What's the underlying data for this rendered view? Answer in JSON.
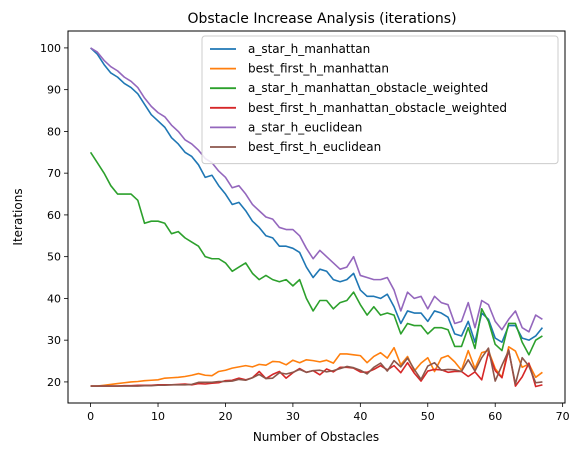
{
  "chart_data": {
    "type": "line",
    "title": "Obstacle Increase Analysis (iterations)",
    "xlabel": "Number of Obstacles",
    "ylabel": "Iterations",
    "xlim": [
      -3.35,
      70.35
    ],
    "ylim": [
      14.95,
      104.05
    ],
    "xticks": [
      0,
      10,
      20,
      30,
      40,
      50,
      60,
      70
    ],
    "yticks": [
      20,
      30,
      40,
      50,
      60,
      70,
      80,
      90,
      100
    ],
    "grid": false,
    "legend_position": "top-right",
    "x": [
      0,
      1,
      2,
      3,
      4,
      5,
      6,
      7,
      8,
      9,
      10,
      11,
      12,
      13,
      14,
      15,
      16,
      17,
      18,
      19,
      20,
      21,
      22,
      23,
      24,
      25,
      26,
      27,
      28,
      29,
      30,
      31,
      32,
      33,
      34,
      35,
      36,
      37,
      38,
      39,
      40,
      41,
      42,
      43,
      44,
      45,
      46,
      47,
      48,
      49,
      50,
      51,
      52,
      53,
      54,
      55,
      56,
      57,
      58,
      59,
      60,
      61,
      62,
      63,
      64,
      65,
      66,
      67
    ],
    "series": [
      {
        "name": "a_star_h_manhattan",
        "color": "#1f77b4",
        "values": [
          100,
          98.5,
          96,
          94,
          93,
          91.5,
          90.5,
          89,
          86.5,
          84,
          82.5,
          81,
          78.5,
          77,
          75,
          74,
          72,
          69,
          69.5,
          67,
          65,
          62.5,
          63,
          61,
          58.5,
          57,
          55,
          54.5,
          52.5,
          52.5,
          52,
          51,
          47.5,
          45,
          47,
          46.5,
          44.5,
          44,
          44.5,
          46,
          42,
          40.5,
          40.5,
          40,
          41,
          38,
          34,
          37,
          36.5,
          36.5,
          34.5,
          37,
          36.5,
          35.5,
          31.5,
          31,
          34.5,
          29.5,
          36.5,
          35,
          30.5,
          29.5,
          33.5,
          33.5,
          30.5,
          30,
          31,
          33
        ]
      },
      {
        "name": "best_first_h_manhattan",
        "color": "#ff7f0e",
        "values": [
          19,
          19,
          19.2,
          19.4,
          19.6,
          19.8,
          20,
          20.1,
          20.3,
          20.4,
          20.5,
          20.9,
          21,
          21.1,
          21.3,
          21.6,
          22,
          21.6,
          21.5,
          22.5,
          22.8,
          23.3,
          23.6,
          23.9,
          23.6,
          24.2,
          24,
          24.9,
          24.8,
          24.1,
          25.2,
          24.6,
          25.3,
          25.1,
          24.8,
          25.2,
          24.5,
          26.7,
          26.7,
          26.5,
          26.3,
          24.6,
          26.1,
          27,
          25.7,
          28.2,
          24.1,
          26.1,
          22.6,
          24.5,
          25.8,
          22.5,
          25.7,
          26.3,
          24.8,
          22.8,
          27.5,
          23.2,
          27,
          27.5,
          23.2,
          21.1,
          28.4,
          27.4,
          23.5,
          24.3,
          21.1,
          22.3
        ]
      },
      {
        "name": "a_star_h_manhattan_obstacle_weighted",
        "color": "#2ca02c",
        "values": [
          75,
          72.5,
          70,
          67,
          65,
          65,
          65,
          63.5,
          58,
          58.5,
          58.5,
          58,
          55.5,
          56,
          54.5,
          53.5,
          52.5,
          50,
          49.5,
          49.5,
          48.5,
          46.5,
          47.5,
          48.5,
          46,
          44.5,
          45.5,
          44.5,
          44,
          44.5,
          43,
          44.5,
          40,
          37,
          39.5,
          39.5,
          37.5,
          39,
          39.5,
          41.5,
          38.5,
          36,
          38,
          36,
          36.5,
          36,
          31.5,
          34,
          33.5,
          33.5,
          31.5,
          33,
          33,
          32.5,
          28.5,
          28.5,
          33,
          28,
          37.5,
          34.5,
          29,
          27.5,
          34,
          34,
          29.5,
          26.5,
          30,
          31
        ]
      },
      {
        "name": "best_first_h_manhattan_obstacle_weighted",
        "color": "#d62728",
        "values": [
          19,
          19,
          19,
          19,
          19,
          19.1,
          19.1,
          19.2,
          19.2,
          19.2,
          19.3,
          19.3,
          19.3,
          19.4,
          19.5,
          19.3,
          19.6,
          19.5,
          19.7,
          19.8,
          20.3,
          20.4,
          20.9,
          20.5,
          21,
          22.5,
          20.8,
          21.8,
          22.5,
          20.9,
          22.2,
          23.2,
          22.3,
          22.7,
          21.7,
          23.1,
          22.4,
          23.5,
          23.5,
          23.3,
          22.4,
          22.3,
          23,
          23.9,
          22.9,
          23.9,
          22.2,
          24.6,
          22.1,
          20.2,
          22.6,
          23,
          22.9,
          22.3,
          22.5,
          22.5,
          21.3,
          22.4,
          20.5,
          27.1,
          22.7,
          21,
          27.7,
          19,
          21.2,
          24.5,
          18.9,
          19.3
        ]
      },
      {
        "name": "a_star_h_euclidean",
        "color": "#9467bd",
        "values": [
          100,
          99,
          97,
          95.5,
          94.5,
          93,
          92,
          90.5,
          88,
          86,
          84.5,
          83.5,
          81.5,
          80,
          78,
          77,
          75.5,
          73.5,
          72.5,
          70.5,
          69,
          66.5,
          67,
          65,
          62.5,
          61,
          59.5,
          59,
          57,
          56.5,
          56.5,
          55,
          52,
          49.5,
          51.5,
          50,
          48.5,
          47,
          47.5,
          50,
          45.5,
          45,
          44.5,
          44.5,
          45,
          42,
          37,
          41.5,
          40,
          40.5,
          37.5,
          40.5,
          39,
          38.5,
          34,
          34.5,
          39,
          33,
          39.5,
          38.5,
          34.5,
          32.5,
          35,
          37,
          33,
          32,
          36,
          35
        ]
      },
      {
        "name": "best_first_h_euclidean",
        "color": "#8c564b",
        "values": [
          19,
          19,
          19,
          19,
          19,
          19,
          19,
          19,
          19.1,
          19.1,
          19.2,
          19.2,
          19.3,
          19.3,
          19.3,
          19.4,
          19.9,
          19.9,
          19.9,
          20.1,
          20.1,
          20.2,
          20.6,
          20.4,
          21,
          21.8,
          20.8,
          20.9,
          22.2,
          21.9,
          22.3,
          23,
          22.3,
          22.7,
          22.8,
          22.4,
          22.7,
          23.2,
          23.7,
          23.4,
          22.8,
          21.9,
          23.5,
          24.5,
          22.6,
          25.1,
          23.6,
          25.7,
          23,
          20.6,
          23.8,
          24.6,
          22.8,
          23,
          22.9,
          22.5,
          25.3,
          22.6,
          25.8,
          28.1,
          20.2,
          24,
          27.5,
          19.5,
          25.8,
          23.8,
          19.8,
          20
        ]
      }
    ]
  }
}
